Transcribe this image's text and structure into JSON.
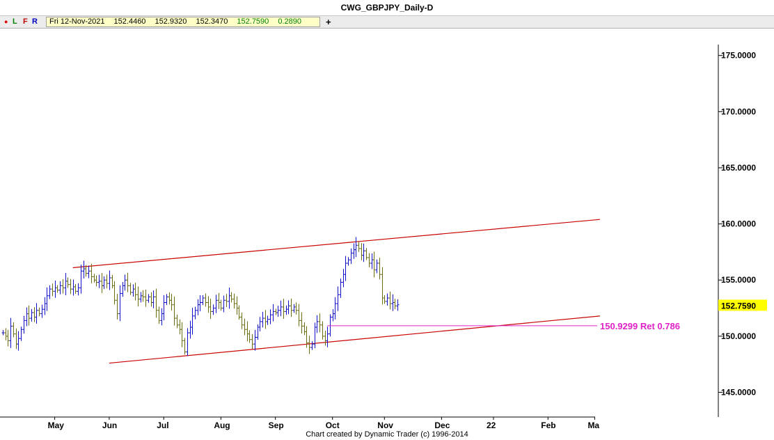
{
  "window": {
    "title": "CWG_GBPJPY_Daily-D"
  },
  "toolbar": {
    "dot": "●",
    "l": "L",
    "f": "F",
    "r": "R",
    "date": "Fri 12-Nov-2021",
    "open": "152.4460",
    "high": "152.9320",
    "low": "152.3470",
    "close": "152.7590",
    "change": "0.2890",
    "add": "+"
  },
  "credit": "Chart created by Dynamic Trader  (c) 1996-2014",
  "colors": {
    "up_bar": "#1010c8",
    "down_bar": "#6b6b10",
    "channel": "#c80000",
    "annotation": "#e020c8",
    "price_tag": "#ffff00"
  },
  "chart_data": {
    "type": "ohlc",
    "ylim": [
      142.8,
      177.4
    ],
    "yticks": [
      "145.0000",
      "150.0000",
      "155.0000",
      "160.0000",
      "165.0000",
      "170.0000",
      "175.0000"
    ],
    "ytick_values": [
      145,
      150,
      155,
      160,
      165,
      170,
      175
    ],
    "xticks": [
      "May",
      "Jun",
      "Jul",
      "Aug",
      "Sep",
      "Oct",
      "Nov",
      "Dec",
      "22",
      "Feb",
      "Ma"
    ],
    "xtick_days": [
      20,
      41,
      62,
      84,
      105,
      127,
      147,
      169,
      189,
      210,
      228
    ],
    "last_price": "152.7590",
    "last_value": 152.759,
    "start_value": 150.3,
    "closes": [
      150.3,
      150.0,
      149.6,
      150.9,
      150.2,
      149.3,
      149.8,
      150.6,
      151.4,
      152.0,
      151.6,
      152.1,
      151.7,
      152.3,
      152.0,
      152.4,
      152.9,
      153.6,
      154.2,
      154.0,
      154.3,
      154.1,
      154.5,
      154.3,
      154.9,
      154.6,
      154.2,
      154.4,
      154.0,
      154.3,
      155.8,
      156.0,
      155.6,
      155.8,
      155.3,
      155.0,
      154.8,
      154.9,
      154.5,
      155.0,
      154.7,
      155.2,
      154.5,
      153.2,
      152.0,
      153.8,
      154.5,
      155.0,
      154.5,
      153.9,
      154.2,
      153.7,
      153.3,
      153.6,
      153.5,
      153.2,
      153.5,
      153.0,
      153.5,
      152.3,
      151.4,
      152.0,
      153.0,
      153.5,
      153.2,
      152.8,
      151.6,
      151.0,
      150.6,
      149.6,
      148.6,
      150.3,
      150.8,
      151.8,
      152.3,
      152.8,
      153.0,
      153.4,
      153.0,
      152.6,
      152.2,
      152.5,
      153.2,
      153.0,
      152.5,
      153.2,
      153.1,
      153.6,
      153.3,
      152.9,
      152.5,
      151.7,
      151.0,
      150.6,
      150.2,
      149.7,
      149.3,
      149.9,
      150.8,
      151.3,
      151.6,
      151.3,
      151.5,
      151.9,
      152.2,
      152.1,
      152.3,
      152.6,
      152.2,
      152.4,
      152.7,
      152.3,
      152.6,
      152.3,
      151.4,
      150.9,
      150.4,
      149.4,
      149.0,
      149.3,
      150.8,
      151.3,
      151.0,
      150.0,
      149.6,
      150.2,
      151.7,
      152.0,
      152.9,
      153.7,
      154.8,
      155.5,
      156.5,
      156.8,
      157.4,
      157.7,
      158.1,
      157.8,
      157.2,
      157.6,
      157.0,
      156.5,
      156.8,
      155.9,
      156.5,
      155.5,
      153.4,
      153.1,
      153.4,
      152.9,
      153.0,
      152.7,
      152.8
    ]
  },
  "annotation": {
    "label": "150.9299 Ret 0.786",
    "value": 150.9299,
    "start_day": 125,
    "end_day": 220
  },
  "channel": {
    "upper": {
      "start_day": 27,
      "start_value": 156.1,
      "end_day": 230,
      "end_value": 160.4
    },
    "lower": {
      "start_day": 41,
      "start_value": 147.6,
      "end_day": 230,
      "end_value": 151.8
    }
  }
}
